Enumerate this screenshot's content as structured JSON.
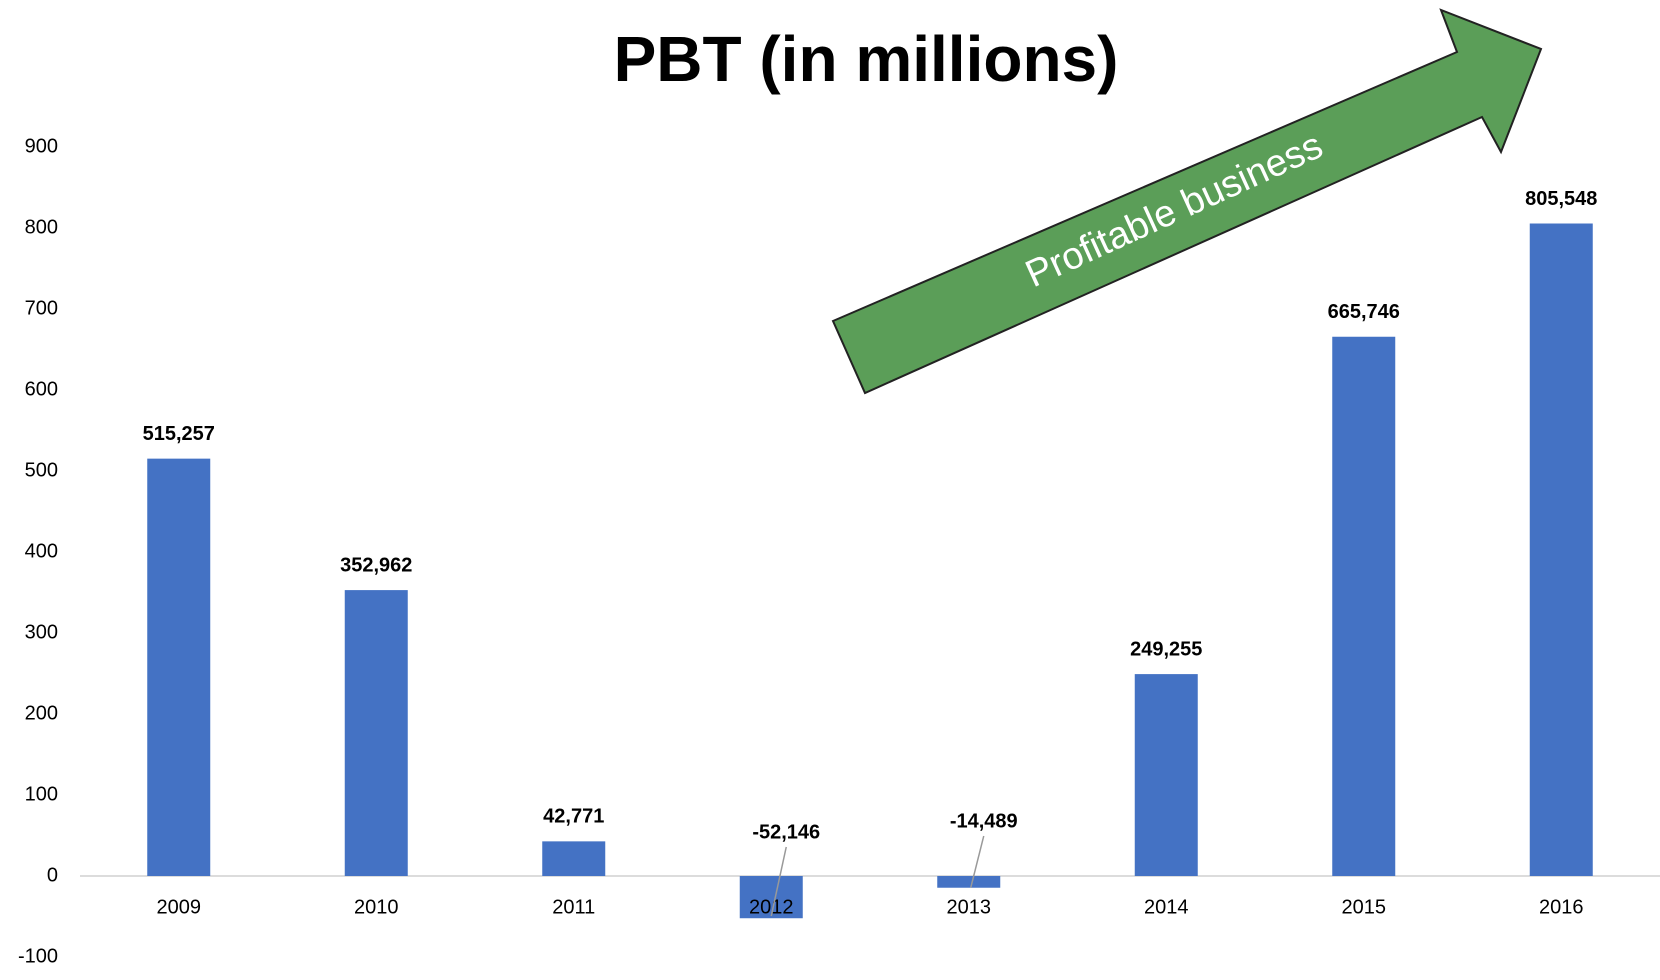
{
  "chart_data": {
    "type": "bar",
    "title": "PBT (in millions)",
    "categories": [
      "2009",
      "2010",
      "2011",
      "2012",
      "2013",
      "2014",
      "2015",
      "2016"
    ],
    "values": [
      515.257,
      352.962,
      42.771,
      -52.146,
      -14.489,
      249.255,
      665.746,
      805.548
    ],
    "value_labels": [
      "515,257",
      "352,962",
      "42,771",
      "-52,146",
      "-14,489",
      "249,255",
      "665,746",
      "805,548"
    ],
    "color": "#4472c4",
    "ylim": [
      -100,
      900
    ],
    "yticks": [
      -100,
      0,
      100,
      200,
      300,
      400,
      500,
      600,
      700,
      800,
      900
    ],
    "grid": false,
    "annotation": "Profitable business"
  }
}
